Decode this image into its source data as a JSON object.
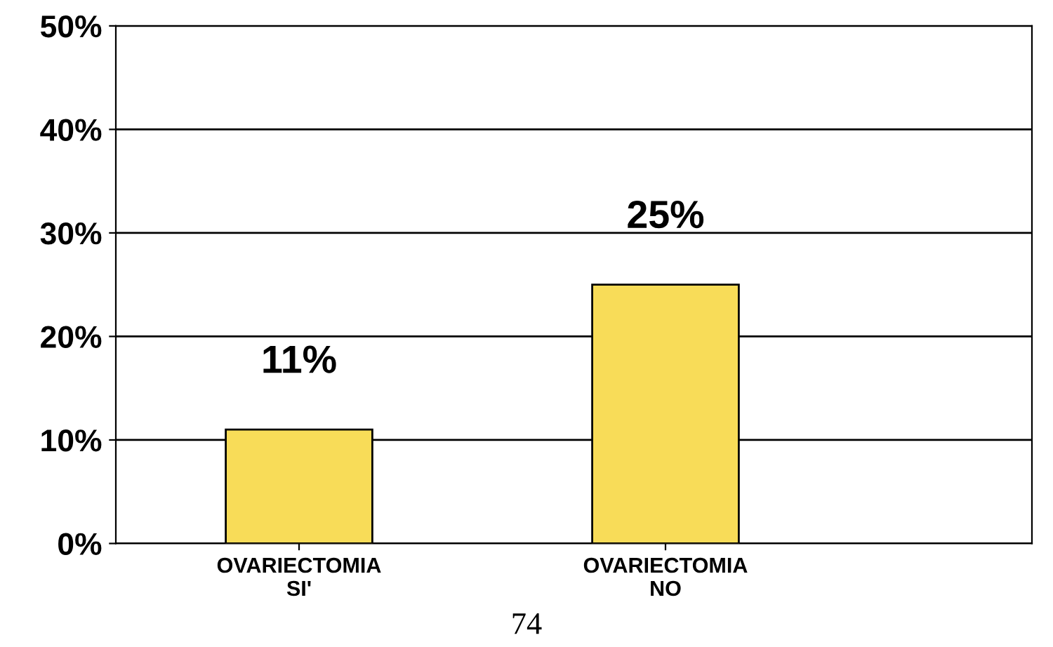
{
  "chart_data": {
    "type": "bar",
    "categories": [
      "OVARIECTOMIA\nSI'",
      "OVARIECTOMIA\nNO"
    ],
    "values": [
      11,
      25
    ],
    "value_labels": [
      "11%",
      "25%"
    ],
    "color": "#f8dc58",
    "ylim": [
      0,
      50
    ],
    "yticks": [
      {
        "value": 0,
        "label": "0%"
      },
      {
        "value": 10,
        "label": "10%"
      },
      {
        "value": 20,
        "label": "20%"
      },
      {
        "value": 30,
        "label": "30%"
      },
      {
        "value": 40,
        "label": "40%"
      },
      {
        "value": 50,
        "label": "50%"
      }
    ],
    "grid": "y",
    "annotations": [
      "74"
    ]
  }
}
